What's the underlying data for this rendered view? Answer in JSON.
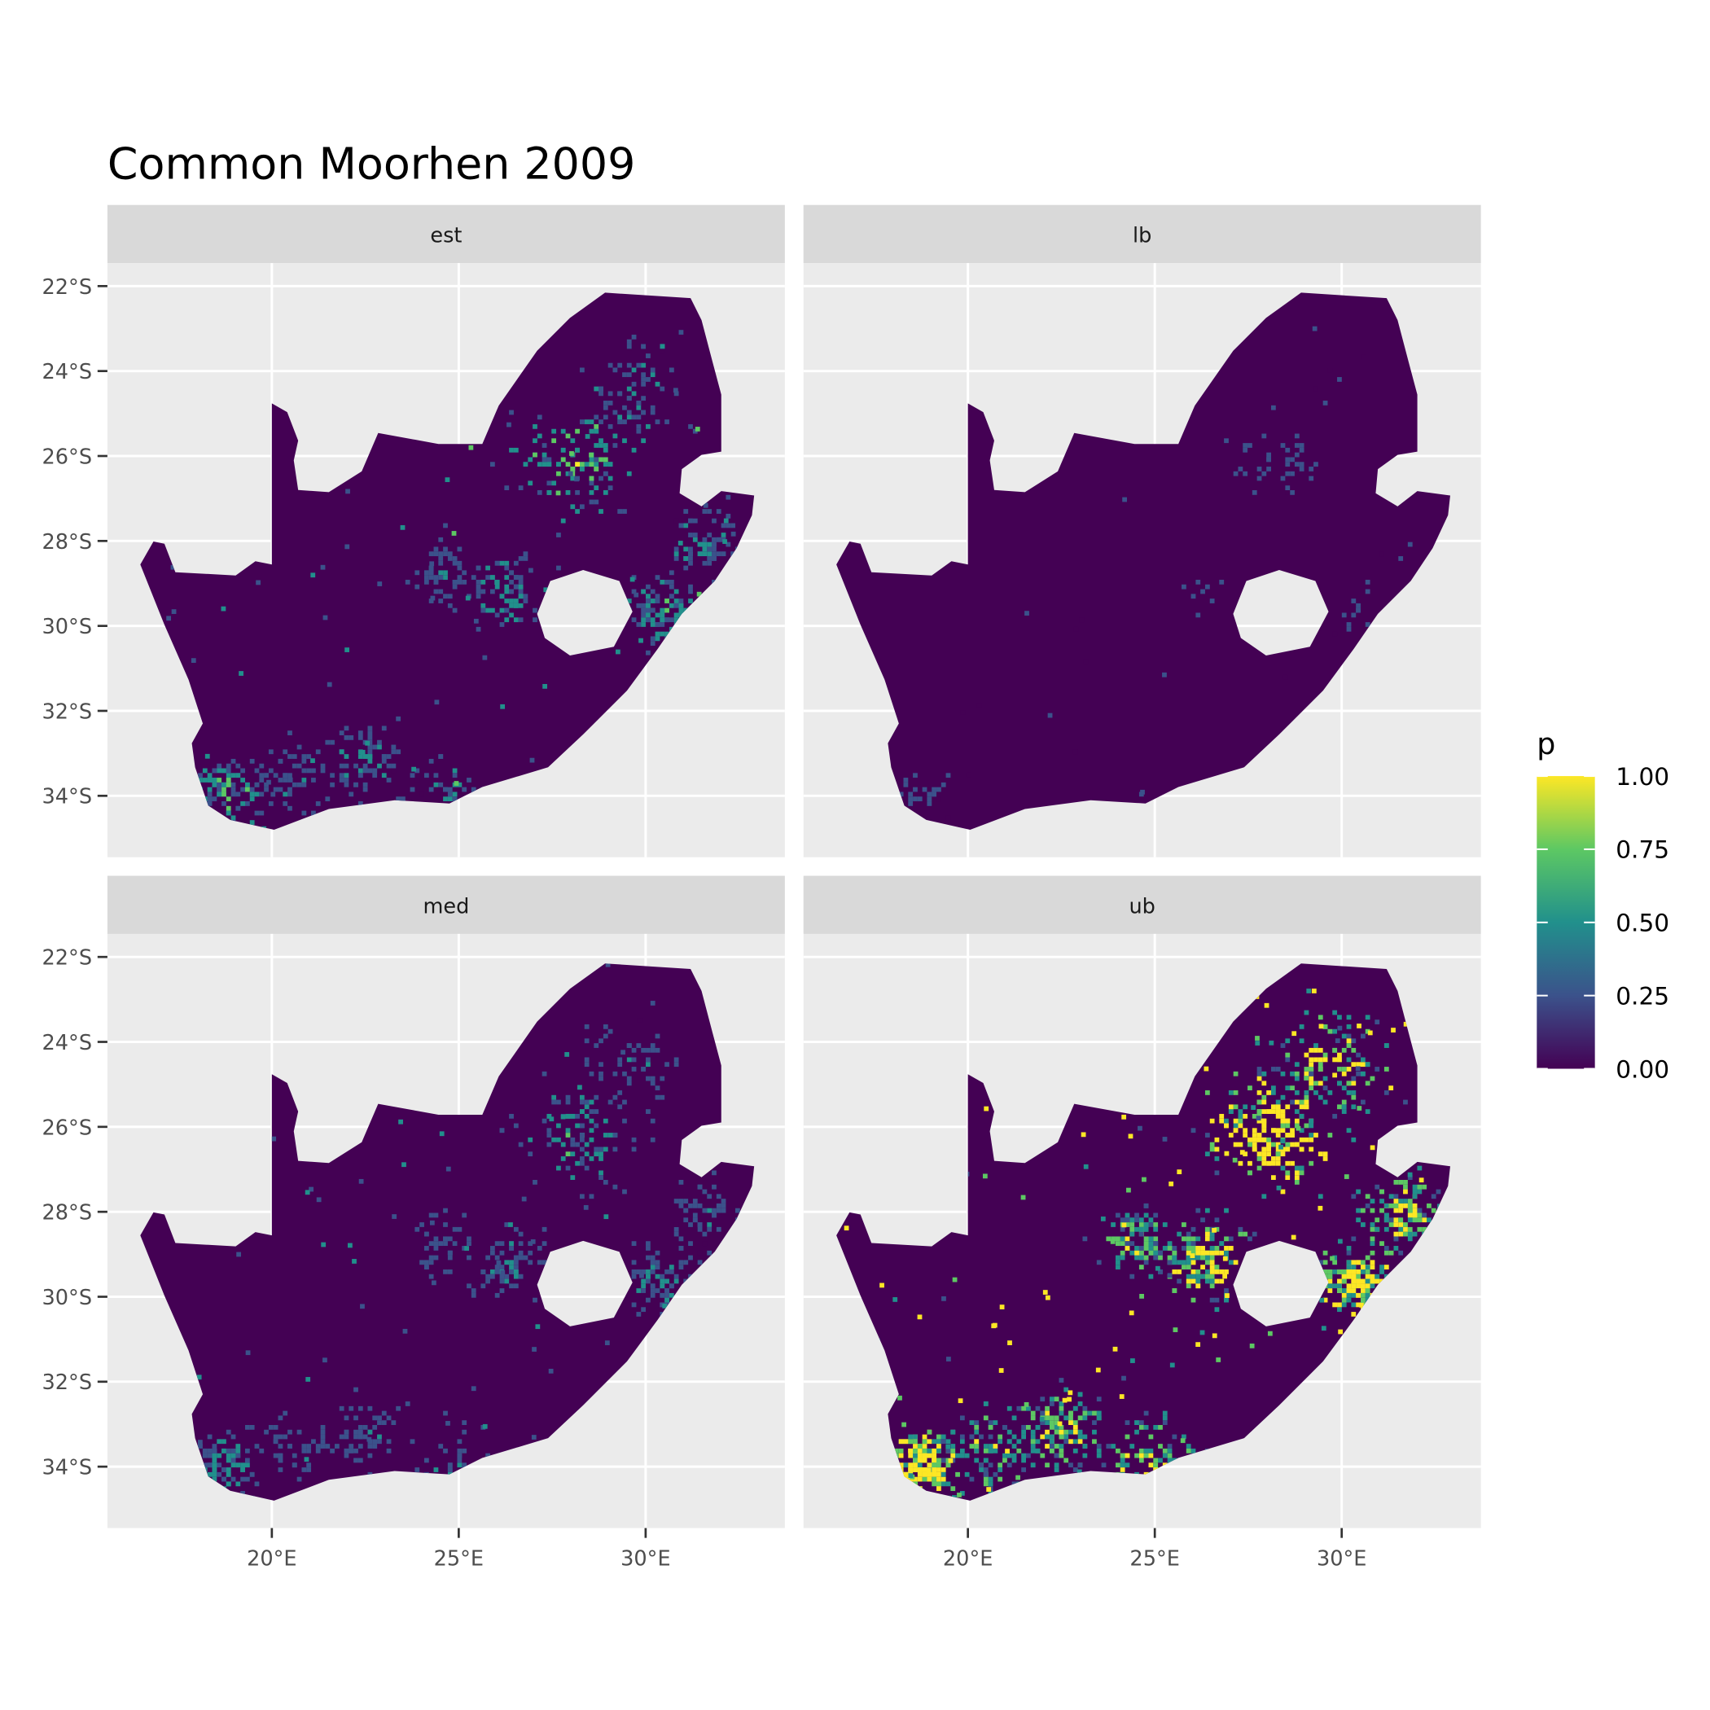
{
  "chart_data": {
    "type": "heatmap",
    "title": "Common Moorhen 2009",
    "facets": [
      "est",
      "lb",
      "med",
      "ub"
    ],
    "x_ticks": [
      "20°E",
      "25°E",
      "30°E"
    ],
    "x_tick_values": [
      20,
      25,
      30
    ],
    "y_ticks": [
      "22°S",
      "24°S",
      "26°S",
      "28°S",
      "30°S",
      "32°S",
      "34°S"
    ],
    "y_tick_values": [
      -22,
      -24,
      -26,
      -28,
      -30,
      -32,
      -34
    ],
    "legend": {
      "title": "p",
      "labels": [
        "1.00",
        "0.75",
        "0.50",
        "0.25",
        "0.00"
      ],
      "range": [
        0,
        1
      ],
      "colormap": "viridis",
      "placement": "right",
      "colors": [
        "#440154",
        "#3b528b",
        "#21908c",
        "#5dc863",
        "#fde725"
      ]
    },
    "panel_background": "#ebebeb",
    "strip_background": "#d9d9d9",
    "grid": true,
    "hotspots_lonlat": [
      {
        "lon": 28.1,
        "lat": -26.1,
        "spread": 1.3,
        "weight": 1.0
      },
      {
        "lon": 26.2,
        "lat": -29.1,
        "spread": 0.9,
        "weight": 0.7
      },
      {
        "lon": 30.3,
        "lat": -29.6,
        "spread": 0.8,
        "weight": 0.8
      },
      {
        "lon": 18.7,
        "lat": -33.9,
        "spread": 0.8,
        "weight": 0.9
      },
      {
        "lon": 22.4,
        "lat": -33.1,
        "spread": 0.9,
        "weight": 0.6
      },
      {
        "lon": 24.8,
        "lat": -34.0,
        "spread": 1.2,
        "weight": 0.6
      },
      {
        "lon": 29.6,
        "lat": -24.5,
        "spread": 1.2,
        "weight": 0.6
      },
      {
        "lon": 31.5,
        "lat": -28.0,
        "spread": 0.9,
        "weight": 0.6
      },
      {
        "lon": 24.5,
        "lat": -28.7,
        "spread": 0.8,
        "weight": 0.5
      },
      {
        "lon": 20.5,
        "lat": -33.5,
        "spread": 1.0,
        "weight": 0.5
      }
    ],
    "facet_intensity": {
      "est": 0.45,
      "lb": 0.12,
      "med": 0.35,
      "ub": 1.0
    }
  }
}
